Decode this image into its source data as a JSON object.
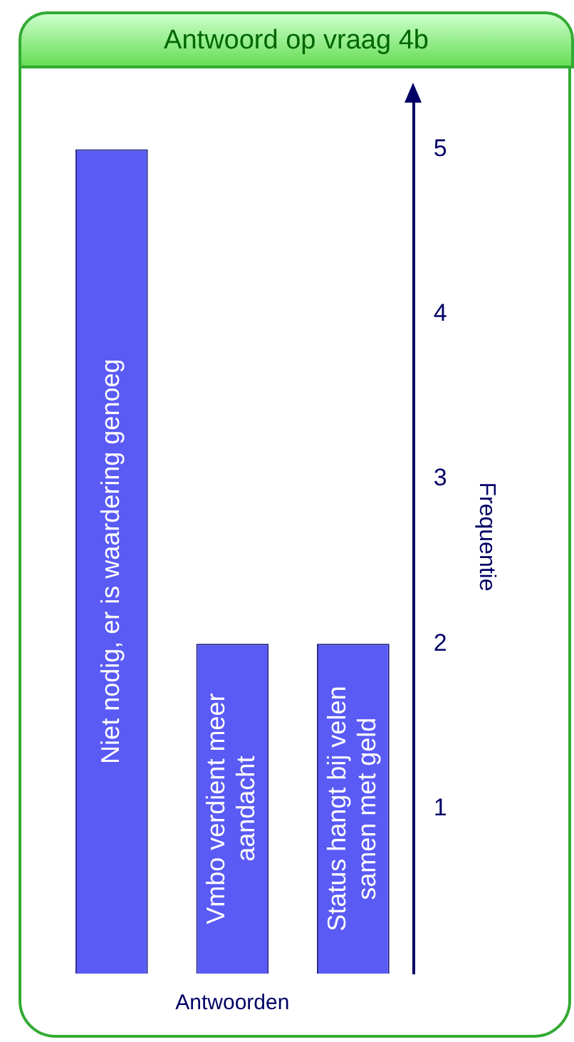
{
  "chart_data": {
    "type": "bar",
    "title": "Antwoord op vraag 4b",
    "xlabel": "Antwoorden",
    "ylabel": "Frequentie",
    "categories": [
      "Niet nodig, er is waardering genoeg",
      "Vmbo verdient meer aandacht",
      "Status hangt bij velen samen met geld"
    ],
    "values": [
      5,
      2,
      2
    ],
    "color": "#5a5af5",
    "ylim": [
      0,
      5.3
    ],
    "yticks": [
      1,
      2,
      3,
      4,
      5
    ],
    "grid": false,
    "legend": false,
    "tick_labels": "y"
  }
}
